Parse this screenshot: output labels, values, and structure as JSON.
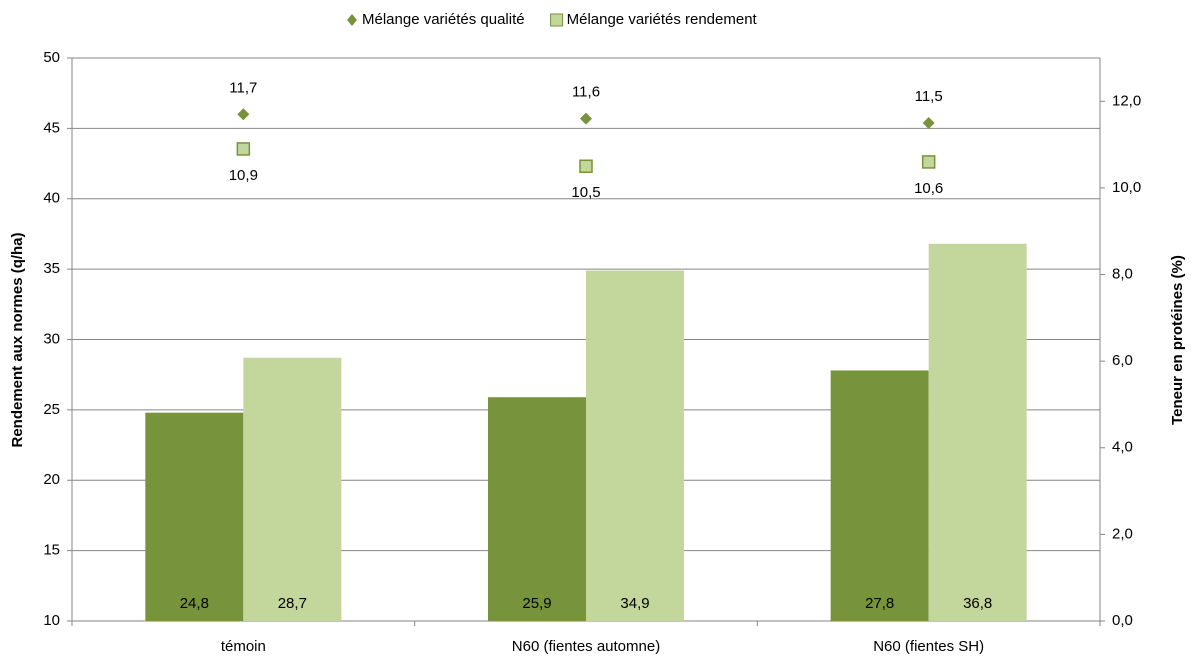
{
  "chart_data": {
    "type": "bar",
    "y_label": "Rendement aux normes (q/ha)",
    "y2_label": "Teneur en protéines (%)",
    "categories": [
      "témoin",
      "N60 (fientes automne)",
      "N60 (fientes SH)"
    ],
    "series": [
      {
        "name": "Mélange variétés qualité",
        "color": "#77933c",
        "values": [
          24.8,
          25.9,
          27.8
        ],
        "value_labels": [
          "24,8",
          "25,9",
          "27,8"
        ]
      },
      {
        "name": "Mélange variétés rendement",
        "color": "#c3d69b",
        "values": [
          28.7,
          34.9,
          36.8
        ],
        "value_labels": [
          "28,7",
          "34,9",
          "36,8"
        ]
      },
      {
        "type": "scatter",
        "axis": "y2",
        "marker": "diamond",
        "color": "#77933c",
        "values": [
          11.7,
          11.6,
          11.5
        ],
        "value_labels": [
          "11,7",
          "11,6",
          "11,5"
        ]
      },
      {
        "type": "scatter",
        "axis": "y2",
        "marker": "square",
        "color": "#c3d69b",
        "values": [
          10.9,
          10.5,
          10.6
        ],
        "value_labels": [
          "10,9",
          "10,5",
          "10,6"
        ]
      }
    ],
    "ylim": [
      10,
      50
    ],
    "yticks": [
      10,
      15,
      20,
      25,
      30,
      35,
      40,
      45,
      50
    ],
    "y2lim": [
      0,
      13
    ],
    "y2ticks": [
      {
        "value": 0,
        "label": "0,0"
      },
      {
        "value": 2,
        "label": "2,0"
      },
      {
        "value": 4,
        "label": "4,0"
      },
      {
        "value": 6,
        "label": "6,0"
      },
      {
        "value": 8,
        "label": "8,0"
      },
      {
        "value": 10,
        "label": "10,0"
      },
      {
        "value": 12,
        "label": "12,0"
      }
    ],
    "grid": true,
    "legend": "top"
  }
}
